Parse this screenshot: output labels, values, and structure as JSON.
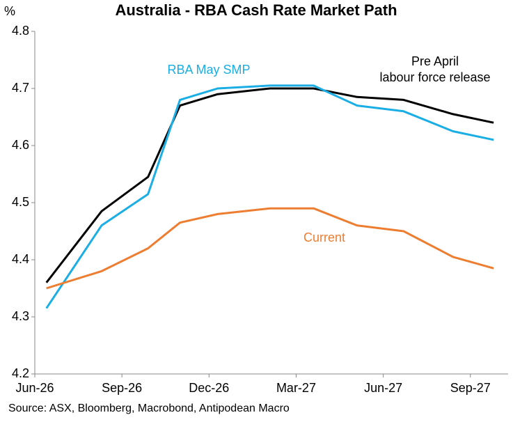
{
  "chart_data": {
    "type": "line",
    "title": "Australia - RBA Cash Rate Market Path",
    "y_label": "%",
    "source": "Source: ASX, Bloomberg, Macrobond, Antipodean Macro",
    "x": [
      0.4,
      2.3,
      3.9,
      5.0,
      6.3,
      8.1,
      9.6,
      11.1,
      12.7,
      14.4,
      15.8
    ],
    "xlim": [
      0,
      16.3
    ],
    "xticks": [
      {
        "value": 0,
        "label": "Jun-26"
      },
      {
        "value": 3,
        "label": "Sep-26"
      },
      {
        "value": 6,
        "label": "Dec-26"
      },
      {
        "value": 9,
        "label": "Mar-27"
      },
      {
        "value": 12,
        "label": "Jun-27"
      },
      {
        "value": 15,
        "label": "Sep-27"
      }
    ],
    "ylim": [
      4.2,
      4.8
    ],
    "yticks": [
      4.2,
      4.3,
      4.4,
      4.5,
      4.6,
      4.7,
      4.8
    ],
    "series": [
      {
        "color": "#000000",
        "values": [
          4.36,
          4.485,
          4.545,
          4.67,
          4.69,
          4.7,
          4.7,
          4.685,
          4.68,
          4.655,
          4.64
        ]
      },
      {
        "color": "#1aaee5",
        "values": [
          4.315,
          4.46,
          4.515,
          4.68,
          4.7,
          4.705,
          4.705,
          4.67,
          4.66,
          4.625,
          4.61
        ]
      },
      {
        "color": "#ed7d31",
        "values": [
          4.35,
          4.38,
          4.42,
          4.465,
          4.48,
          4.49,
          4.49,
          4.46,
          4.45,
          4.405,
          4.385
        ]
      }
    ],
    "annotations": [
      "RBA May SMP",
      "Pre April",
      "labour force release",
      "Current"
    ]
  }
}
